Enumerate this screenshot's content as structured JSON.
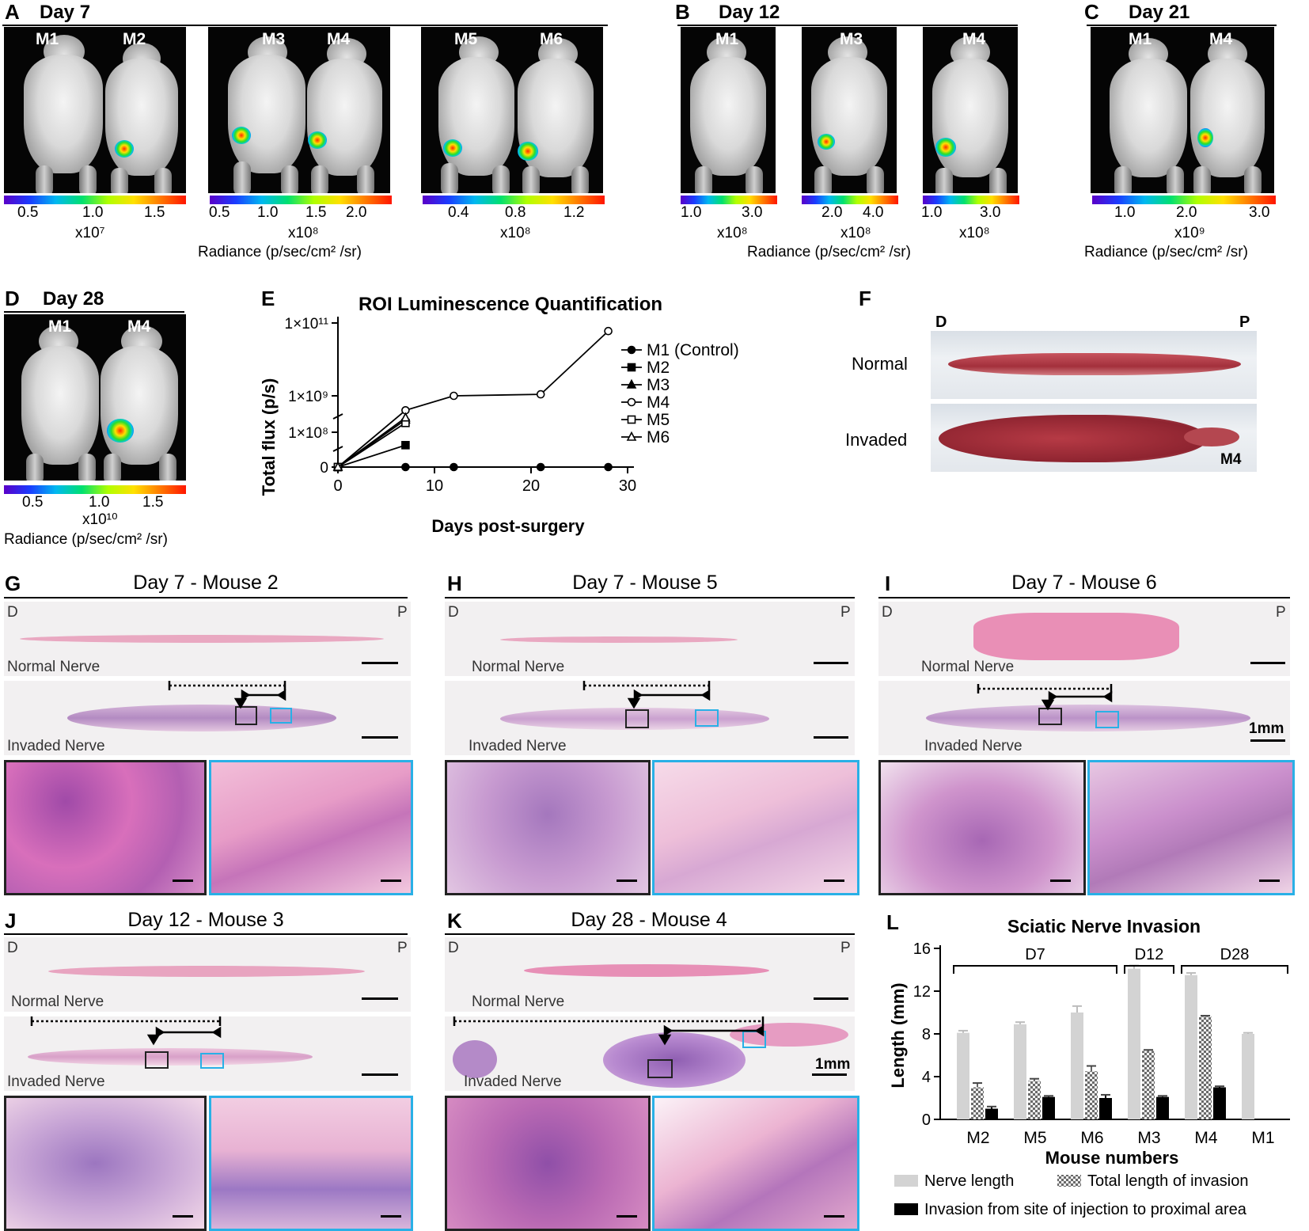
{
  "panels": {
    "A": {
      "letter": "A",
      "title": "Day 7",
      "mice": [
        "M1",
        "M2",
        "M3",
        "M4",
        "M5",
        "M6"
      ],
      "scales": [
        {
          "ticks": [
            "0.5",
            "1.0",
            "1.5"
          ],
          "mult": "x10⁷"
        },
        {
          "ticks": [
            "0.5",
            "1.0",
            "1.5",
            "2.0"
          ],
          "mult": "x10⁸"
        },
        {
          "ticks": [
            "0.4",
            "0.8",
            "1.2"
          ],
          "mult": "x10⁸"
        }
      ]
    },
    "B": {
      "letter": "B",
      "title": "Day 12",
      "mice": [
        "M1",
        "M3",
        "M4"
      ],
      "scales": [
        {
          "ticks": [
            "1.0",
            "3.0"
          ],
          "mult": "x10⁸"
        },
        {
          "ticks": [
            "2.0",
            "4.0"
          ],
          "mult": "x10⁸"
        },
        {
          "ticks": [
            "1.0",
            "3.0"
          ],
          "mult": "x10⁸"
        }
      ]
    },
    "C": {
      "letter": "C",
      "title": "Day 21",
      "mice": [
        "M1",
        "M4"
      ],
      "scales": [
        {
          "ticks": [
            "1.0",
            "2.0",
            "3.0"
          ],
          "mult": "x10⁹"
        }
      ]
    },
    "D": {
      "letter": "D",
      "title": "Day 28",
      "mice": [
        "M1",
        "M4"
      ],
      "scales": [
        {
          "ticks": [
            "0.5",
            "1.0",
            "1.5"
          ],
          "mult": "x10¹⁰"
        }
      ]
    },
    "E": {
      "letter": "E"
    },
    "F": {
      "letter": "F",
      "d": "D",
      "p": "P",
      "normal": "Normal",
      "invaded": "Invaded",
      "mouse": "M4"
    },
    "G": {
      "letter": "G",
      "title": "Day 7 - Mouse 2"
    },
    "H": {
      "letter": "H",
      "title": "Day 7 - Mouse 5"
    },
    "I": {
      "letter": "I",
      "title": "Day 7 - Mouse 6"
    },
    "J": {
      "letter": "J",
      "title": "Day 12 - Mouse 3"
    },
    "K": {
      "letter": "K",
      "title": "Day 28 - Mouse 4"
    },
    "L": {
      "letter": "L"
    }
  },
  "radiance_label": "Radiance (p/sec/cm² /sr)",
  "histo_labels": {
    "d": "D",
    "p": "P",
    "normal": "Normal Nerve",
    "invaded": "Invaded Nerve",
    "scale": "1mm"
  },
  "chart_data": [
    {
      "type": "line",
      "title": "ROI Luminescence Quantification",
      "xlabel": "Days post-surgery",
      "ylabel": "Total flux (p/s)",
      "x_ticks": [
        "0",
        "10",
        "20",
        "30"
      ],
      "xlim": [
        0,
        30
      ],
      "y_tick_labels": [
        "0",
        "1×10⁸",
        "1×10⁹",
        "1×10¹¹"
      ],
      "y_scale": "log (broken)",
      "legend_position": "right",
      "series": [
        {
          "name": "M1 (Control)",
          "marker": "filled-circle",
          "points": [
            [
              0,
              0
            ],
            [
              7,
              0
            ],
            [
              12,
              0
            ],
            [
              21,
              0
            ],
            [
              28,
              0
            ]
          ]
        },
        {
          "name": "M2",
          "marker": "filled-square",
          "points": [
            [
              0,
              0
            ],
            [
              7,
              50000000
            ]
          ]
        },
        {
          "name": "M3",
          "marker": "filled-triangle",
          "points": [
            [
              0,
              0
            ],
            [
              7,
              220000000
            ]
          ]
        },
        {
          "name": "M4",
          "marker": "open-circle",
          "points": [
            [
              0,
              0
            ],
            [
              7,
              400000000
            ],
            [
              12,
              1000000000
            ],
            [
              21,
              1100000000
            ],
            [
              28,
              60000000000
            ]
          ]
        },
        {
          "name": "M5",
          "marker": "open-square",
          "points": [
            [
              0,
              0
            ],
            [
              7,
              180000000
            ]
          ]
        },
        {
          "name": "M6",
          "marker": "open-triangle",
          "points": [
            [
              0,
              0
            ],
            [
              7,
              250000000
            ]
          ]
        }
      ]
    },
    {
      "type": "bar",
      "title": "Sciatic Nerve Invasion",
      "xlabel": "Mouse numbers",
      "ylabel": "Length (mm)",
      "ylim": [
        0,
        16
      ],
      "y_ticks": [
        "0",
        "4",
        "8",
        "12",
        "16"
      ],
      "categories": [
        "M2",
        "M5",
        "M6",
        "M3",
        "M4",
        "M1"
      ],
      "groups": [
        {
          "label": "D7",
          "from": 0,
          "to": 2
        },
        {
          "label": "D12",
          "from": 3,
          "to": 3
        },
        {
          "label": "D28",
          "from": 4,
          "to": 5
        }
      ],
      "series": [
        {
          "name": "Nerve length",
          "color": "#d3d3d3",
          "values": [
            8.1,
            8.9,
            10.0,
            14.1,
            13.5,
            8.0
          ],
          "errors": [
            0.2,
            0.2,
            0.6,
            0.3,
            0.2,
            0.1
          ]
        },
        {
          "name": "Total length of invasion",
          "color": "#8a8a8a",
          "pattern": "checker",
          "values": [
            3.0,
            3.6,
            4.5,
            6.4,
            9.6,
            0
          ],
          "errors": [
            0.4,
            0.2,
            0.5,
            0.1,
            0.1,
            0
          ]
        },
        {
          "name": "Invasion from site of injection to proximal area",
          "color": "#000000",
          "values": [
            1.0,
            2.1,
            2.0,
            2.1,
            3.0,
            0
          ],
          "errors": [
            0.2,
            0.1,
            0.3,
            0.1,
            0.1,
            0
          ]
        }
      ]
    }
  ]
}
